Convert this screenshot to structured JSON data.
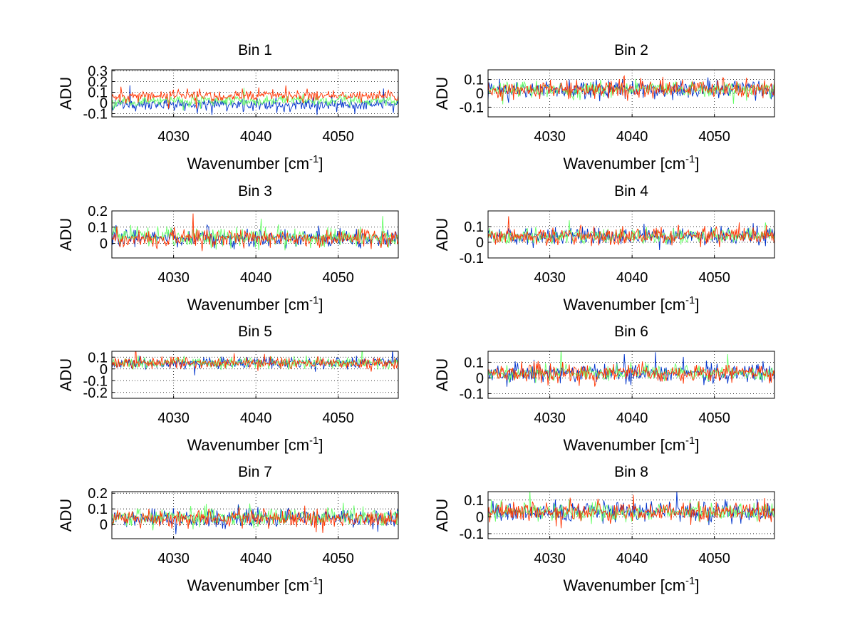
{
  "chart_data": [
    {
      "type": "line",
      "title": "Bin 1",
      "xlabel_main": "Wavenumber [cm",
      "xlabel_sup": "-1",
      "xlabel_close": "]",
      "ylabel": "ADU",
      "xlim": [
        4022.5,
        4057.3
      ],
      "ylim": [
        -0.13,
        0.31
      ],
      "xticks": [
        4030,
        4040,
        4050
      ],
      "yticks": [
        -0.1,
        0,
        0.1,
        0.2,
        0.3
      ],
      "ytick_labels": [
        "-0.1",
        "0",
        "0.1",
        "0.2",
        "0.3"
      ],
      "grid": true,
      "series": [
        {
          "color": "#0033cc",
          "offset": -0.02,
          "sigma": 0.035,
          "values": []
        },
        {
          "color": "#66ff66",
          "offset": 0.02,
          "sigma": 0.03,
          "values": []
        },
        {
          "color": "#ff3300",
          "offset": 0.07,
          "sigma": 0.035,
          "values": []
        }
      ]
    },
    {
      "type": "line",
      "title": "Bin 2",
      "xlabel_main": "Wavenumber [cm",
      "xlabel_sup": "-1",
      "xlabel_close": "]",
      "ylabel": "ADU",
      "xlim": [
        4022.5,
        4057.3
      ],
      "ylim": [
        -0.17,
        0.17
      ],
      "xticks": [
        4030,
        4040,
        4050
      ],
      "yticks": [
        -0.1,
        0,
        0.1
      ],
      "ytick_labels": [
        "-0.1",
        "0",
        "0.1"
      ],
      "grid": true,
      "series": [
        {
          "color": "#0033cc",
          "offset": 0.03,
          "sigma": 0.04,
          "values": []
        },
        {
          "color": "#66ff66",
          "offset": 0.03,
          "sigma": 0.035,
          "values": []
        },
        {
          "color": "#ff3300",
          "offset": 0.03,
          "sigma": 0.04,
          "values": []
        }
      ]
    },
    {
      "type": "line",
      "title": "Bin 3",
      "xlabel_main": "Wavenumber [cm",
      "xlabel_sup": "-1",
      "xlabel_close": "]",
      "ylabel": "ADU",
      "xlim": [
        4022.5,
        4057.3
      ],
      "ylim": [
        -0.09,
        0.2
      ],
      "xticks": [
        4030,
        4040,
        4050
      ],
      "yticks": [
        0,
        0.1,
        0.2
      ],
      "ytick_labels": [
        "0",
        "0.1",
        "0.2"
      ],
      "grid": true,
      "series": [
        {
          "color": "#0033cc",
          "offset": 0.03,
          "sigma": 0.035,
          "values": []
        },
        {
          "color": "#66ff66",
          "offset": 0.04,
          "sigma": 0.035,
          "values": []
        },
        {
          "color": "#ff3300",
          "offset": 0.03,
          "sigma": 0.035,
          "values": []
        }
      ]
    },
    {
      "type": "line",
      "title": "Bin 4",
      "xlabel_main": "Wavenumber [cm",
      "xlabel_sup": "-1",
      "xlabel_close": "]",
      "ylabel": "ADU",
      "xlim": [
        4022.5,
        4057.3
      ],
      "ylim": [
        -0.1,
        0.2
      ],
      "xticks": [
        4030,
        4040,
        4050
      ],
      "yticks": [
        -0.1,
        0,
        0.1
      ],
      "ytick_labels": [
        "-0.1",
        "0",
        "0.1"
      ],
      "grid": true,
      "series": [
        {
          "color": "#0033cc",
          "offset": 0.04,
          "sigma": 0.035,
          "values": []
        },
        {
          "color": "#66ff66",
          "offset": 0.04,
          "sigma": 0.03,
          "values": []
        },
        {
          "color": "#ff3300",
          "offset": 0.04,
          "sigma": 0.035,
          "values": []
        }
      ]
    },
    {
      "type": "line",
      "title": "Bin 5",
      "xlabel_main": "Wavenumber [cm",
      "xlabel_sup": "-1",
      "xlabel_close": "]",
      "ylabel": "ADU",
      "xlim": [
        4022.5,
        4057.3
      ],
      "ylim": [
        -0.25,
        0.15
      ],
      "xticks": [
        4030,
        4040,
        4050
      ],
      "yticks": [
        -0.2,
        -0.1,
        0,
        0.1
      ],
      "ytick_labels": [
        "-0.2",
        "-0.1",
        "0",
        "0.1"
      ],
      "grid": true,
      "series": [
        {
          "color": "#0033cc",
          "offset": 0.05,
          "sigma": 0.03,
          "values": []
        },
        {
          "color": "#66ff66",
          "offset": 0.05,
          "sigma": 0.03,
          "values": []
        },
        {
          "color": "#ff3300",
          "offset": 0.05,
          "sigma": 0.03,
          "values": []
        }
      ]
    },
    {
      "type": "line",
      "title": "Bin 6",
      "xlabel_main": "Wavenumber [cm",
      "xlabel_sup": "-1",
      "xlabel_close": "]",
      "ylabel": "ADU",
      "xlim": [
        4022.5,
        4057.3
      ],
      "ylim": [
        -0.13,
        0.17
      ],
      "xticks": [
        4030,
        4040,
        4050
      ],
      "yticks": [
        -0.1,
        0,
        0.1
      ],
      "ytick_labels": [
        "-0.1",
        "0",
        "0.1"
      ],
      "grid": true,
      "series": [
        {
          "color": "#0033cc",
          "offset": 0.03,
          "sigma": 0.035,
          "values": []
        },
        {
          "color": "#66ff66",
          "offset": 0.03,
          "sigma": 0.03,
          "values": []
        },
        {
          "color": "#ff3300",
          "offset": 0.03,
          "sigma": 0.035,
          "values": []
        }
      ]
    },
    {
      "type": "line",
      "title": "Bin 7",
      "xlabel_main": "Wavenumber [cm",
      "xlabel_sup": "-1",
      "xlabel_close": "]",
      "ylabel": "ADU",
      "xlim": [
        4022.5,
        4057.3
      ],
      "ylim": [
        -0.09,
        0.21
      ],
      "xticks": [
        4030,
        4040,
        4050
      ],
      "yticks": [
        0,
        0.1,
        0.2
      ],
      "ytick_labels": [
        "0",
        "0.1",
        "0.2"
      ],
      "grid": true,
      "series": [
        {
          "color": "#0033cc",
          "offset": 0.04,
          "sigma": 0.035,
          "values": []
        },
        {
          "color": "#66ff66",
          "offset": 0.05,
          "sigma": 0.035,
          "values": []
        },
        {
          "color": "#ff3300",
          "offset": 0.04,
          "sigma": 0.035,
          "values": []
        }
      ]
    },
    {
      "type": "line",
      "title": "Bin 8",
      "xlabel_main": "Wavenumber [cm",
      "xlabel_sup": "-1",
      "xlabel_close": "]",
      "ylabel": "ADU",
      "xlim": [
        4022.5,
        4057.3
      ],
      "ylim": [
        -0.13,
        0.15
      ],
      "xticks": [
        4030,
        4040,
        4050
      ],
      "yticks": [
        -0.1,
        0,
        0.1
      ],
      "ytick_labels": [
        "-0.1",
        "0",
        "0.1"
      ],
      "grid": true,
      "series": [
        {
          "color": "#0033cc",
          "offset": 0.03,
          "sigma": 0.035,
          "values": []
        },
        {
          "color": "#66ff66",
          "offset": 0.03,
          "sigma": 0.035,
          "values": []
        },
        {
          "color": "#ff3300",
          "offset": 0.03,
          "sigma": 0.035,
          "values": []
        }
      ]
    }
  ]
}
